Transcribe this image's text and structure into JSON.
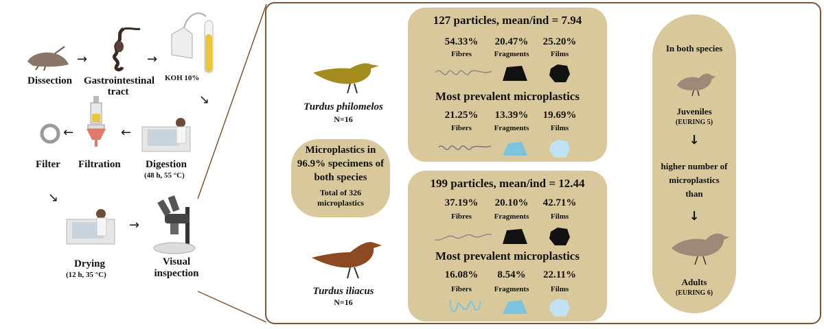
{
  "workflow": {
    "dissection": "Dissection",
    "gi_tract": "Gastrointestinal tract",
    "koh": "KOH 10%",
    "digestion": "Digestion",
    "digestion_cond": "(48 h, 55 °C)",
    "filtration": "Filtration",
    "filter": "Filter",
    "drying": "Drying",
    "drying_cond": "(12 h, 35 °C)",
    "visual": "Visual inspection"
  },
  "species1": {
    "name": "Turdus philomelos",
    "n": "N=16"
  },
  "species2": {
    "name": "Turdus iliacus",
    "n": "N=16"
  },
  "summary": {
    "line1": "Microplastics in",
    "line2": "96.9% specimens of",
    "line3": "both species",
    "total1": "Total of 326",
    "total2": "microplastics"
  },
  "box1": {
    "title": "127 particles, mean/ind =  7.94",
    "types": [
      {
        "pct": "54.33%",
        "label": "Fibres"
      },
      {
        "pct": "20.47%",
        "label": "Fragments"
      },
      {
        "pct": "25.20%",
        "label": "Films"
      }
    ],
    "prevalent_title": "Most prevalent microplastics",
    "prevalent": [
      {
        "pct": "21.25%",
        "label": "Fibers"
      },
      {
        "pct": "13.39%",
        "label": "Fragments"
      },
      {
        "pct": "19.69%",
        "label": "Films"
      }
    ]
  },
  "box2": {
    "title": "199 particles, mean/ind =  12.44",
    "types": [
      {
        "pct": "37.19%",
        "label": "Fibres"
      },
      {
        "pct": "20.10%",
        "label": "Fragments"
      },
      {
        "pct": "42.71%",
        "label": "Films"
      }
    ],
    "prevalent_title": "Most prevalent microplastics",
    "prevalent": [
      {
        "pct": "16.08%",
        "label": "Fibers"
      },
      {
        "pct": "8.54%",
        "label": "Fragments"
      },
      {
        "pct": "22.11%",
        "label": "Films"
      }
    ]
  },
  "right_panel": {
    "title": "In both species",
    "juveniles": "Juveniles",
    "juveniles_code": "(EURING 5)",
    "line1": "higher number of",
    "line2": "microplastics",
    "line3": "than",
    "adults": "Adults",
    "adults_code": "(EURING 6)",
    "down_arrow": "↓"
  },
  "colors": {
    "tan": "#d9c89b",
    "frame": "#7a5433",
    "song_thrush": "#a38b1e",
    "redwing": "#8b4a22",
    "light_blue": "#7ec3dd",
    "film_blue": "#bfe3f2",
    "bird_grey": "#a08878"
  }
}
